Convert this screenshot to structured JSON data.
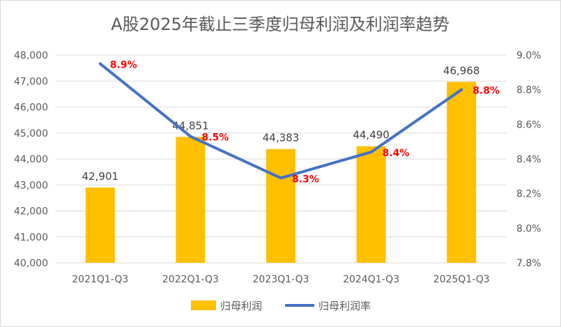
{
  "chart_data": {
    "type": "bar",
    "title": "A股2025年截止三季度归母利润及利润率趋势",
    "categories": [
      "2021Q1-Q3",
      "2022Q1-Q3",
      "2023Q1-Q3",
      "2024Q1-Q3",
      "2025Q1-Q3"
    ],
    "series": [
      {
        "name": "归母利润",
        "type": "bar",
        "axis": "left",
        "color": "#ffc000",
        "values": [
          42901,
          44851,
          44383,
          44490,
          46968
        ],
        "labels": [
          "42,901",
          "44,851",
          "44,383",
          "44,490",
          "46,968"
        ]
      },
      {
        "name": "归母利润率",
        "type": "line",
        "axis": "right",
        "color": "#4472c4",
        "values": [
          8.95,
          8.53,
          8.29,
          8.44,
          8.8
        ],
        "labels": [
          "8.9%",
          "8.5%",
          "8.3%",
          "8.4%",
          "8.8%"
        ],
        "label_color": "#ff0000"
      }
    ],
    "y_left": {
      "lim": [
        40000,
        48000
      ],
      "ticks": [
        40000,
        41000,
        42000,
        43000,
        44000,
        45000,
        46000,
        47000,
        48000
      ],
      "tick_labels": [
        "40,000",
        "41,000",
        "42,000",
        "43,000",
        "44,000",
        "45,000",
        "46,000",
        "47,000",
        "48,000"
      ]
    },
    "y_right": {
      "lim": [
        7.8,
        9.0
      ],
      "ticks": [
        7.8,
        8.0,
        8.2,
        8.4,
        8.6,
        8.8,
        9.0
      ],
      "tick_labels": [
        "7.8%",
        "8.0%",
        "8.2%",
        "8.4%",
        "8.6%",
        "8.8%",
        "9.0%"
      ]
    },
    "grid": true,
    "legend_position": "bottom"
  }
}
